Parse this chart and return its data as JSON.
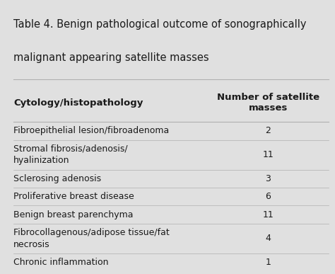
{
  "title_line1": "Table 4. Benign pathological outcome of sonographically",
  "title_line2": "malignant appearing satellite masses",
  "col1_header": "Cytology/histopathology",
  "col2_header": "Number of satellite\nmasses",
  "rows": [
    {
      "label": "Fibroepithelial lesion/fibroadenoma",
      "value": "2"
    },
    {
      "label": "Stromal fibrosis/adenosis/\nhyalinization",
      "value": "11"
    },
    {
      "label": "Sclerosing adenosis",
      "value": "3"
    },
    {
      "label": "Proliferative breast disease",
      "value": "6"
    },
    {
      "label": "Benign breast parenchyma",
      "value": "11"
    },
    {
      "label": "Fibrocollagenous/adipose tissue/fat\nnecrosis",
      "value": "4"
    },
    {
      "label": "Chronic inflammation",
      "value": "1"
    }
  ],
  "bg_color": "#e0e0e0",
  "text_color": "#1a1a1a",
  "divider_color": "#b0b0b0",
  "font_size_title": 10.5,
  "font_size_header": 9.5,
  "font_size_body": 9.0,
  "col_split": 0.62
}
